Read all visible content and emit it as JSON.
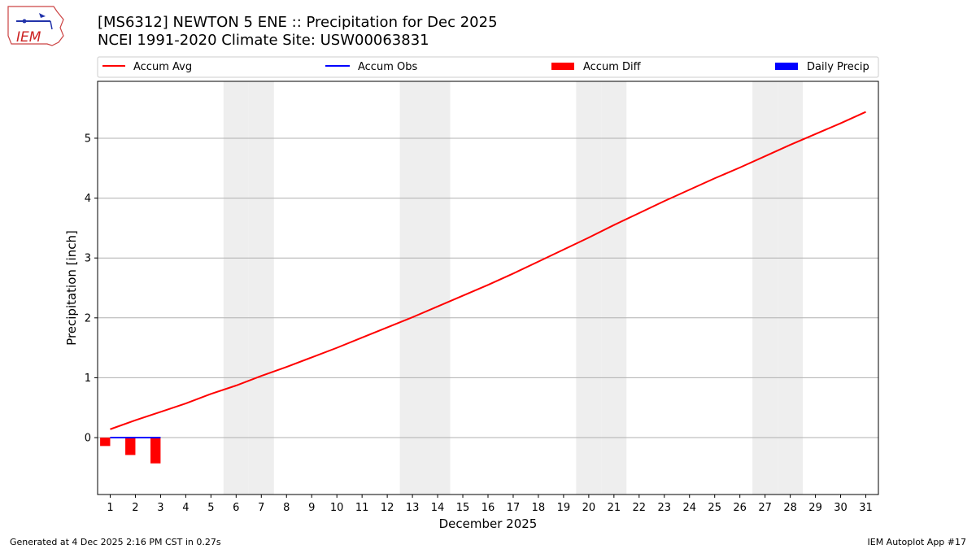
{
  "header": {
    "title_line1": "[MS6312] NEWTON 5 ENE :: Precipitation for Dec 2025",
    "title_line2": "NCEI 1991-2020 Climate Site: USW00063831"
  },
  "logo": {
    "text": "IEM"
  },
  "footer": {
    "left": "Generated at 4 Dec 2025 2:16 PM CST in 0.27s",
    "right": "IEM Autoplot App #17"
  },
  "colors": {
    "accum_avg": "#ff0000",
    "accum_obs": "#0000ff",
    "accum_diff": "#ff0000",
    "daily_precip": "#0000ff",
    "weekend_shade": "#eeeeee",
    "grid": "#b0b0b0"
  },
  "chart_data": {
    "type": "line",
    "xlabel": "December 2025",
    "ylabel": "Precipitation [inch]",
    "xlim": [
      0.5,
      31.5
    ],
    "ylim": [
      -0.95,
      5.95
    ],
    "yticks": [
      0,
      1,
      2,
      3,
      4,
      5
    ],
    "x_ticks": [
      "1",
      "2",
      "3",
      "4",
      "5",
      "6",
      "7",
      "8",
      "9",
      "10",
      "11",
      "12",
      "13",
      "14",
      "15",
      "16",
      "17",
      "18",
      "19",
      "20",
      "21",
      "22",
      "23",
      "24",
      "25",
      "26",
      "27",
      "28",
      "29",
      "30",
      "31"
    ],
    "grid": "horizontal",
    "legend_position": "top",
    "legend": [
      "Accum Avg",
      "Accum Obs",
      "Accum Diff",
      "Daily Precip"
    ],
    "weekend_days": [
      6,
      7,
      13,
      14,
      20,
      21,
      27,
      28
    ],
    "series": [
      {
        "name": "Accum Avg",
        "kind": "line",
        "x": [
          1,
          2,
          3,
          4,
          5,
          6,
          7,
          8,
          9,
          10,
          11,
          12,
          13,
          14,
          15,
          16,
          17,
          18,
          19,
          20,
          21,
          22,
          23,
          24,
          25,
          26,
          27,
          28,
          29,
          30,
          31
        ],
        "values": [
          0.14,
          0.29,
          0.43,
          0.57,
          0.73,
          0.87,
          1.03,
          1.18,
          1.34,
          1.5,
          1.67,
          1.84,
          2.01,
          2.19,
          2.37,
          2.55,
          2.74,
          2.94,
          3.14,
          3.34,
          3.55,
          3.75,
          3.95,
          4.14,
          4.33,
          4.51,
          4.7,
          4.89,
          5.07,
          5.25,
          5.44
        ]
      },
      {
        "name": "Accum Obs",
        "kind": "line",
        "x": [
          1,
          2,
          3
        ],
        "values": [
          0.0,
          0.0,
          0.0
        ]
      },
      {
        "name": "Accum Diff",
        "kind": "bar",
        "x": [
          1,
          2,
          3
        ],
        "values": [
          -0.14,
          -0.29,
          -0.43
        ]
      },
      {
        "name": "Daily Precip",
        "kind": "bar",
        "x": [
          1,
          2,
          3
        ],
        "values": [
          0.0,
          0.0,
          0.0
        ]
      }
    ]
  }
}
